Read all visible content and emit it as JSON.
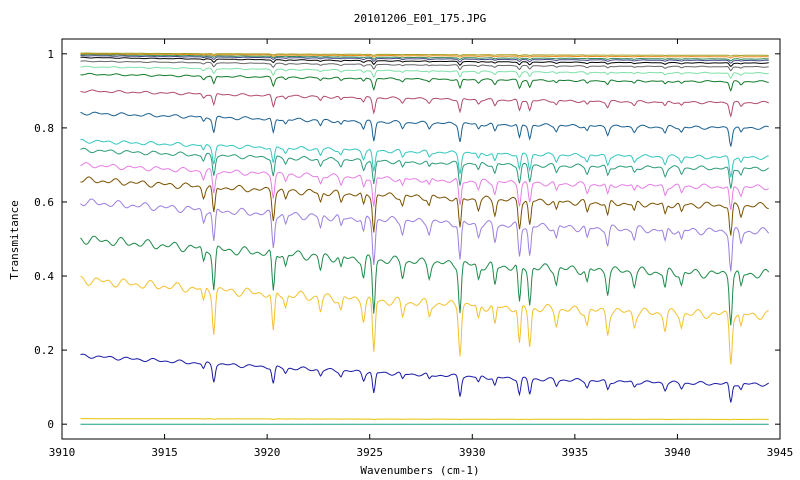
{
  "chart_data": {
    "type": "line",
    "title": "20101206_E01_175.JPG",
    "xlabel": "Wavenumbers (cm-1)",
    "ylabel": "Transmitance",
    "xlim": [
      3910,
      3945
    ],
    "ylim": [
      -0.04,
      1.04
    ],
    "grid": false,
    "legend": "none",
    "x_ticks": [
      "3910",
      "3915",
      "3920",
      "3925",
      "3930",
      "3935",
      "3940",
      "3945"
    ],
    "y_ticks": [
      "0",
      "0.2",
      "0.4",
      "0.6",
      "0.8",
      "1"
    ],
    "absorption_lines": [
      {
        "x": 3917.4,
        "depth": 1.0
      },
      {
        "x": 3916.9,
        "depth": 0.35
      },
      {
        "x": 3920.3,
        "depth": 1.0
      },
      {
        "x": 3920.9,
        "depth": 0.3
      },
      {
        "x": 3922.6,
        "depth": 0.35
      },
      {
        "x": 3923.6,
        "depth": 0.3
      },
      {
        "x": 3925.2,
        "depth": 1.3
      },
      {
        "x": 3924.7,
        "depth": 0.45
      },
      {
        "x": 3926.6,
        "depth": 0.35
      },
      {
        "x": 3927.9,
        "depth": 0.3
      },
      {
        "x": 3929.4,
        "depth": 1.15
      },
      {
        "x": 3930.3,
        "depth": 0.35
      },
      {
        "x": 3931.1,
        "depth": 0.5
      },
      {
        "x": 3932.3,
        "depth": 0.95
      },
      {
        "x": 3932.8,
        "depth": 0.9
      },
      {
        "x": 3934.1,
        "depth": 0.35
      },
      {
        "x": 3935.6,
        "depth": 0.35
      },
      {
        "x": 3936.6,
        "depth": 0.5
      },
      {
        "x": 3937.9,
        "depth": 0.3
      },
      {
        "x": 3939.4,
        "depth": 0.4
      },
      {
        "x": 3940.2,
        "depth": 0.3
      },
      {
        "x": 3942.6,
        "depth": 1.15
      },
      {
        "x": 3943.1,
        "depth": 0.35
      }
    ],
    "series": [
      {
        "color": "#e6c200",
        "start": 0.015,
        "end": 0.013,
        "depth": 0.001
      },
      {
        "color": "#1f9e89",
        "start": 0.0,
        "end": 0.0,
        "depth": 0.0
      },
      {
        "color": "#1a1aa6",
        "start": 0.185,
        "end": 0.108,
        "depth": 0.045
      },
      {
        "color": "#f2c12e",
        "start": 0.39,
        "end": 0.295,
        "depth": 0.11
      },
      {
        "color": "#1e8a4a",
        "start": 0.5,
        "end": 0.405,
        "depth": 0.11
      },
      {
        "color": "#9b7fe0",
        "start": 0.6,
        "end": 0.52,
        "depth": 0.09
      },
      {
        "color": "#7a5200",
        "start": 0.66,
        "end": 0.59,
        "depth": 0.075
      },
      {
        "color": "#e57ee5",
        "start": 0.7,
        "end": 0.64,
        "depth": 0.06
      },
      {
        "color": "#2a9a7a",
        "start": 0.74,
        "end": 0.69,
        "depth": 0.05
      },
      {
        "color": "#33c7bd",
        "start": 0.765,
        "end": 0.72,
        "depth": 0.045
      },
      {
        "color": "#1a5f8f",
        "start": 0.84,
        "end": 0.8,
        "depth": 0.04
      },
      {
        "color": "#b04a6e",
        "start": 0.9,
        "end": 0.868,
        "depth": 0.03
      },
      {
        "color": "#127a2a",
        "start": 0.945,
        "end": 0.925,
        "depth": 0.022
      },
      {
        "color": "#7fe0a8",
        "start": 0.965,
        "end": 0.948,
        "depth": 0.014
      },
      {
        "color": "#666666",
        "start": 0.98,
        "end": 0.965,
        "depth": 0.01
      },
      {
        "color": "#000000",
        "start": 0.99,
        "end": 0.975,
        "depth": 0.008
      },
      {
        "color": "#4a4a8a",
        "start": 0.995,
        "end": 0.982,
        "depth": 0.006
      },
      {
        "color": "#2e8b57",
        "start": 0.998,
        "end": 0.986,
        "depth": 0.004
      },
      {
        "color": "#e88a1a",
        "start": 1.0,
        "end": 0.992,
        "depth": 0.003
      },
      {
        "color": "#a0a020",
        "start": 1.002,
        "end": 0.996,
        "depth": 0.002
      }
    ]
  }
}
